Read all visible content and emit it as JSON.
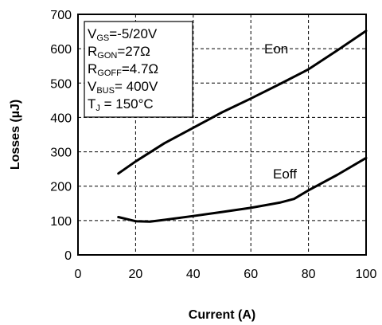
{
  "chart_data": {
    "type": "line",
    "xlabel": "Current (A)",
    "ylabel": "Losses (µJ)",
    "xlim": [
      0,
      100
    ],
    "ylim": [
      0,
      700
    ],
    "xticks": [
      0,
      20,
      40,
      60,
      80,
      100
    ],
    "yticks": [
      0,
      100,
      200,
      300,
      400,
      500,
      600,
      700
    ],
    "grid": true,
    "grid_style": "dashed",
    "series": [
      {
        "name": "Eon",
        "color": "#000000",
        "x": [
          14,
          20,
          30,
          40,
          50,
          60,
          70,
          80,
          90,
          100
        ],
        "y": [
          237,
          272,
          325,
          370,
          415,
          455,
          497,
          540,
          595,
          652
        ]
      },
      {
        "name": "Eoff",
        "color": "#000000",
        "x": [
          14,
          20,
          25,
          30,
          40,
          50,
          60,
          70,
          75,
          80,
          90,
          100
        ],
        "y": [
          110,
          98,
          97,
          102,
          113,
          125,
          137,
          152,
          163,
          188,
          233,
          282
        ]
      }
    ],
    "conditions": [
      {
        "main": "V",
        "sub": "GS",
        "rest": "=-5/20V"
      },
      {
        "main": "R",
        "sub": "GON",
        "rest": "=27Ω"
      },
      {
        "main": "R",
        "sub": "GOFF",
        "rest": "=4.7Ω"
      },
      {
        "main": "V",
        "sub": "BUS",
        "rest": "= 400V"
      },
      {
        "main": "T",
        "sub": "J",
        "rest": " = 150°C"
      }
    ]
  }
}
